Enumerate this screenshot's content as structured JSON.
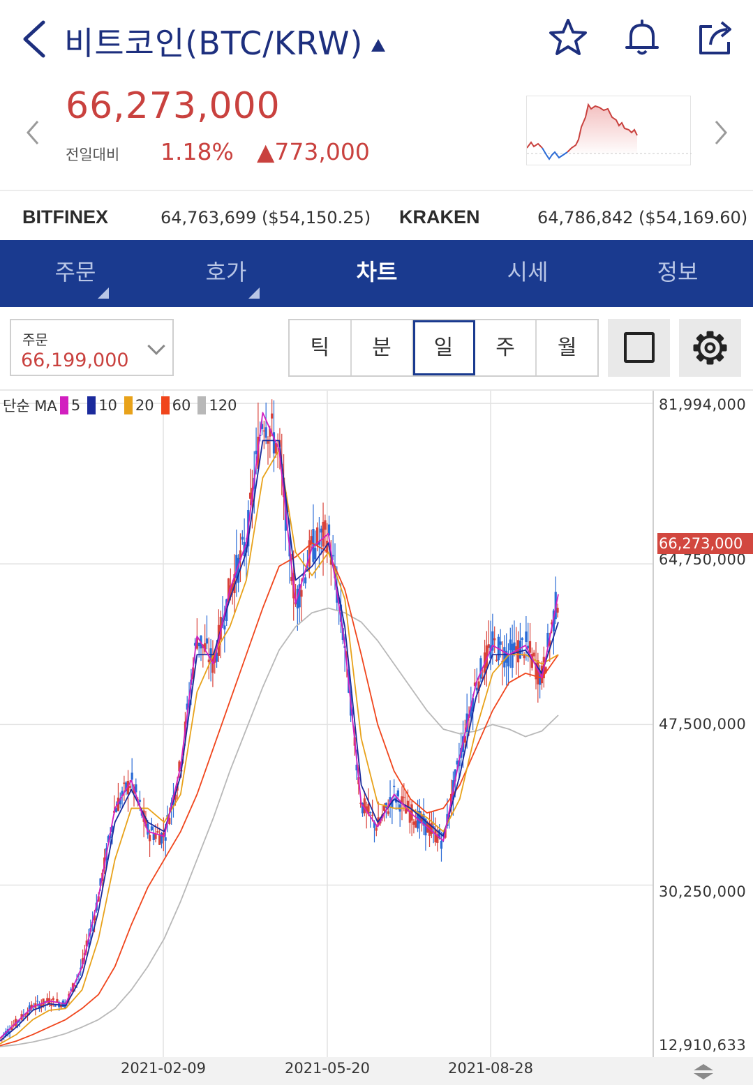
{
  "header": {
    "title": "비트코인(BTC/KRW)",
    "icons": [
      "back-arrow-icon",
      "dropdown-caret-icon",
      "star-icon",
      "bell-icon",
      "share-icon"
    ]
  },
  "quote": {
    "price": "66,273,000",
    "compare_label": "전일대비",
    "change_pct": "1.18%",
    "change_amount": "▲773,000"
  },
  "exchanges": [
    {
      "name": "BITFINEX",
      "value": "64,763,699 ($54,150.25)"
    },
    {
      "name": "KRAKEN",
      "value": "64,786,842 ($54,169.60)"
    }
  ],
  "tabs": [
    {
      "label": "주문"
    },
    {
      "label": "호가"
    },
    {
      "label": "차트"
    },
    {
      "label": "시세"
    },
    {
      "label": "정보"
    }
  ],
  "toolbar": {
    "order_label": "주문",
    "order_value": "66,199,000",
    "periods": [
      "틱",
      "분",
      "일",
      "주",
      "월"
    ],
    "active_period": "일"
  },
  "colors": {
    "accent_navy": "#1a3a8f",
    "up_red": "#c9413e",
    "down_blue": "#2a6bd6",
    "ma5": "#d21fbf",
    "ma10": "#1b2a9c",
    "ma20": "#e8a21a",
    "ma60": "#f0451c",
    "ma120": "#b8b8b8"
  },
  "chart_data": {
    "type": "line",
    "title": "",
    "legend": {
      "prefix": "단순 MA",
      "periods": [
        "5",
        "10",
        "20",
        "60",
        "120"
      ]
    },
    "y_ticks": [
      "81,994,000",
      "64,750,000",
      "47,500,000",
      "30,250,000",
      "12,910,633"
    ],
    "ylim": [
      12910633,
      81994000
    ],
    "current_price_tag": "66,273,000",
    "x_ticks": [
      "2021-02-09",
      "2021-05-20",
      "2021-08-28"
    ],
    "x": [
      0,
      10,
      20,
      30,
      40,
      50,
      60,
      70,
      80,
      90,
      100,
      110,
      120,
      130,
      140,
      150,
      160,
      170,
      180,
      190,
      200,
      210,
      220,
      230,
      240,
      250,
      260,
      270,
      280,
      290,
      300,
      310,
      320,
      330,
      340
    ],
    "series": [
      {
        "name": "5",
        "values": [
          13.8,
          15.5,
          17.2,
          17.8,
          17.5,
          21.5,
          29.0,
          38.5,
          41.5,
          36.0,
          35.5,
          43.0,
          57.0,
          54.0,
          62.0,
          67.0,
          81.0,
          77.0,
          60.5,
          66.5,
          68.0,
          56.0,
          39.0,
          36.5,
          40.0,
          38.0,
          36.5,
          35.0,
          44.0,
          52.0,
          56.0,
          55.0,
          56.0,
          52.5,
          61.5
        ]
      },
      {
        "name": "10",
        "values": [
          13.5,
          15.0,
          16.8,
          17.5,
          17.3,
          20.5,
          27.5,
          37.0,
          40.5,
          37.0,
          36.0,
          42.0,
          55.0,
          55.0,
          61.0,
          66.0,
          78.0,
          78.0,
          63.0,
          64.5,
          67.0,
          58.0,
          41.0,
          37.0,
          39.5,
          38.5,
          37.0,
          35.5,
          42.0,
          50.5,
          55.0,
          55.0,
          55.5,
          53.0,
          58.5
        ]
      },
      {
        "name": "20",
        "values": [
          13.2,
          14.2,
          15.8,
          16.8,
          17.0,
          19.0,
          24.5,
          33.0,
          38.5,
          38.5,
          37.0,
          40.0,
          51.0,
          55.0,
          58.0,
          63.0,
          74.0,
          77.0,
          66.0,
          63.5,
          66.0,
          61.0,
          46.0,
          39.0,
          38.5,
          38.5,
          37.5,
          36.0,
          39.5,
          47.0,
          53.0,
          55.0,
          55.0,
          54.0,
          55.0
        ]
      },
      {
        "name": "60",
        "values": [
          13.0,
          13.5,
          14.2,
          15.0,
          15.8,
          17.0,
          18.5,
          21.5,
          26.0,
          30.0,
          33.0,
          36.0,
          40.0,
          45.0,
          50.0,
          55.0,
          60.0,
          64.5,
          65.5,
          67.0,
          66.0,
          62.0,
          55.0,
          47.5,
          42.5,
          39.5,
          38.0,
          38.5,
          41.0,
          45.0,
          49.0,
          52.0,
          53.0,
          52.5,
          55.0
        ]
      },
      {
        "name": "120",
        "values": [
          12.9,
          13.1,
          13.4,
          13.8,
          14.3,
          15.0,
          15.8,
          17.0,
          19.0,
          21.5,
          24.5,
          28.5,
          33.0,
          37.5,
          42.5,
          47.0,
          51.5,
          55.5,
          58.0,
          59.5,
          60.0,
          59.5,
          58.5,
          56.5,
          54.0,
          51.5,
          49.0,
          47.0,
          46.5,
          46.8,
          47.5,
          47.0,
          46.2,
          46.8,
          48.5
        ]
      }
    ]
  }
}
